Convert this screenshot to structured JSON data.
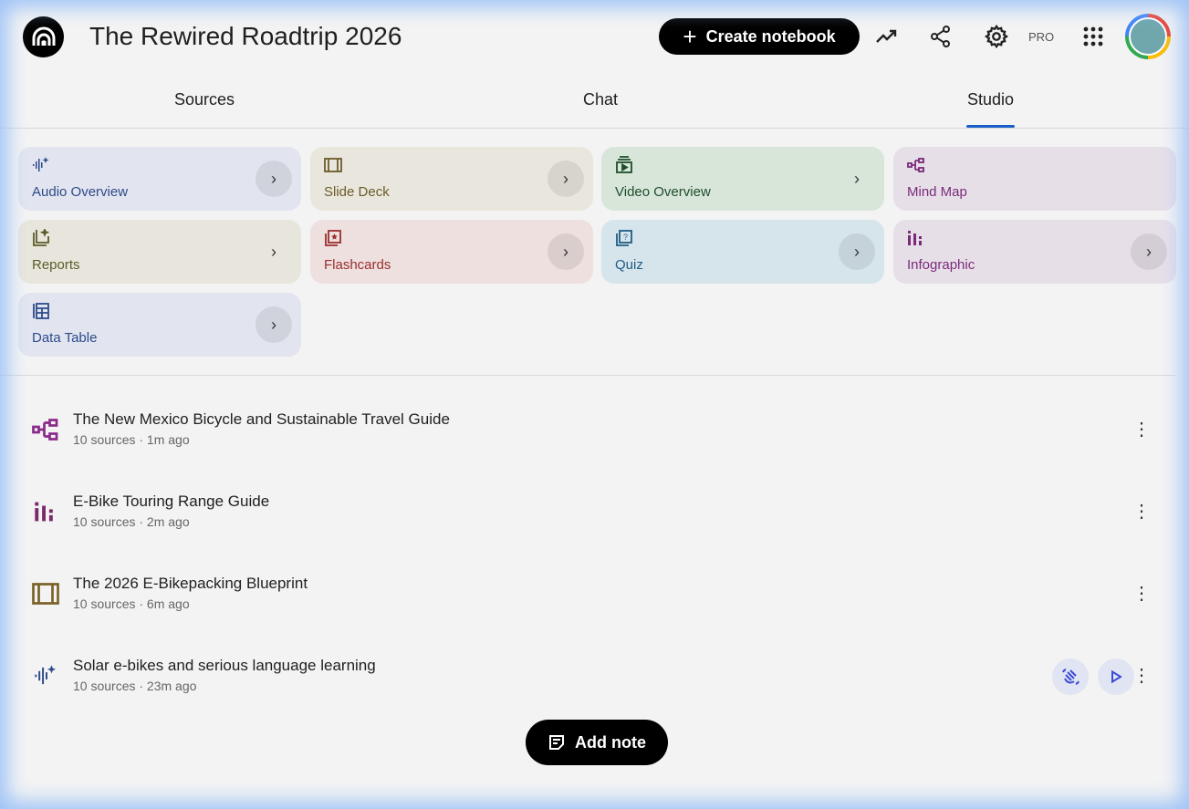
{
  "header": {
    "title": "The Rewired Roadtrip 2026",
    "create_label": "Create notebook",
    "pro_label": "PRO"
  },
  "tabs": [
    {
      "label": "Sources"
    },
    {
      "label": "Chat"
    },
    {
      "label": "Studio",
      "active": true
    }
  ],
  "accent": "#1a5fc9",
  "studio_cards": [
    {
      "label": "Audio Overview",
      "icon": "audio-waveform-icon",
      "color": "#2d4a8a",
      "bg": "#e2e5ef"
    },
    {
      "label": "Slide Deck",
      "icon": "slides-icon",
      "color": "#6b5a2a",
      "bg": "#e9e7dd"
    },
    {
      "label": "Video Overview",
      "icon": "video-icon",
      "color": "#1e4d2b",
      "bg": "#d8e6da"
    },
    {
      "label": "Mind Map",
      "icon": "mind-map-icon",
      "color": "#7a2a7a",
      "bg": "#e7dfe8"
    },
    {
      "label": "Reports",
      "icon": "reports-icon",
      "color": "#5d5a2a",
      "bg": "#e8e6dc"
    },
    {
      "label": "Flashcards",
      "icon": "flashcards-icon",
      "color": "#9a2e2e",
      "bg": "#ede0df"
    },
    {
      "label": "Quiz",
      "icon": "quiz-icon",
      "color": "#1f5c82",
      "bg": "#d6e4ec"
    },
    {
      "label": "Infographic",
      "icon": "infographic-icon",
      "color": "#7a2a7a",
      "bg": "#e7dfe8"
    },
    {
      "label": "Data Table",
      "icon": "data-table-icon",
      "color": "#2d4a8a",
      "bg": "#e2e5ef"
    }
  ],
  "notes": [
    {
      "title": "The New Mexico Bicycle and Sustainable Travel Guide",
      "meta": "10 sources · 1m ago",
      "icon": "mind-map-icon"
    },
    {
      "title": "E-Bike Touring Range Guide",
      "meta": "10 sources · 2m ago",
      "icon": "infographic-icon"
    },
    {
      "title": "The 2026 E-Bikepacking Blueprint",
      "meta": "10 sources · 6m ago",
      "icon": "slides-icon"
    },
    {
      "title": "Solar e-bikes and serious language learning",
      "meta": "10 sources · 23m ago",
      "icon": "audio-waveform-icon"
    }
  ],
  "add_note_label": "Add note"
}
